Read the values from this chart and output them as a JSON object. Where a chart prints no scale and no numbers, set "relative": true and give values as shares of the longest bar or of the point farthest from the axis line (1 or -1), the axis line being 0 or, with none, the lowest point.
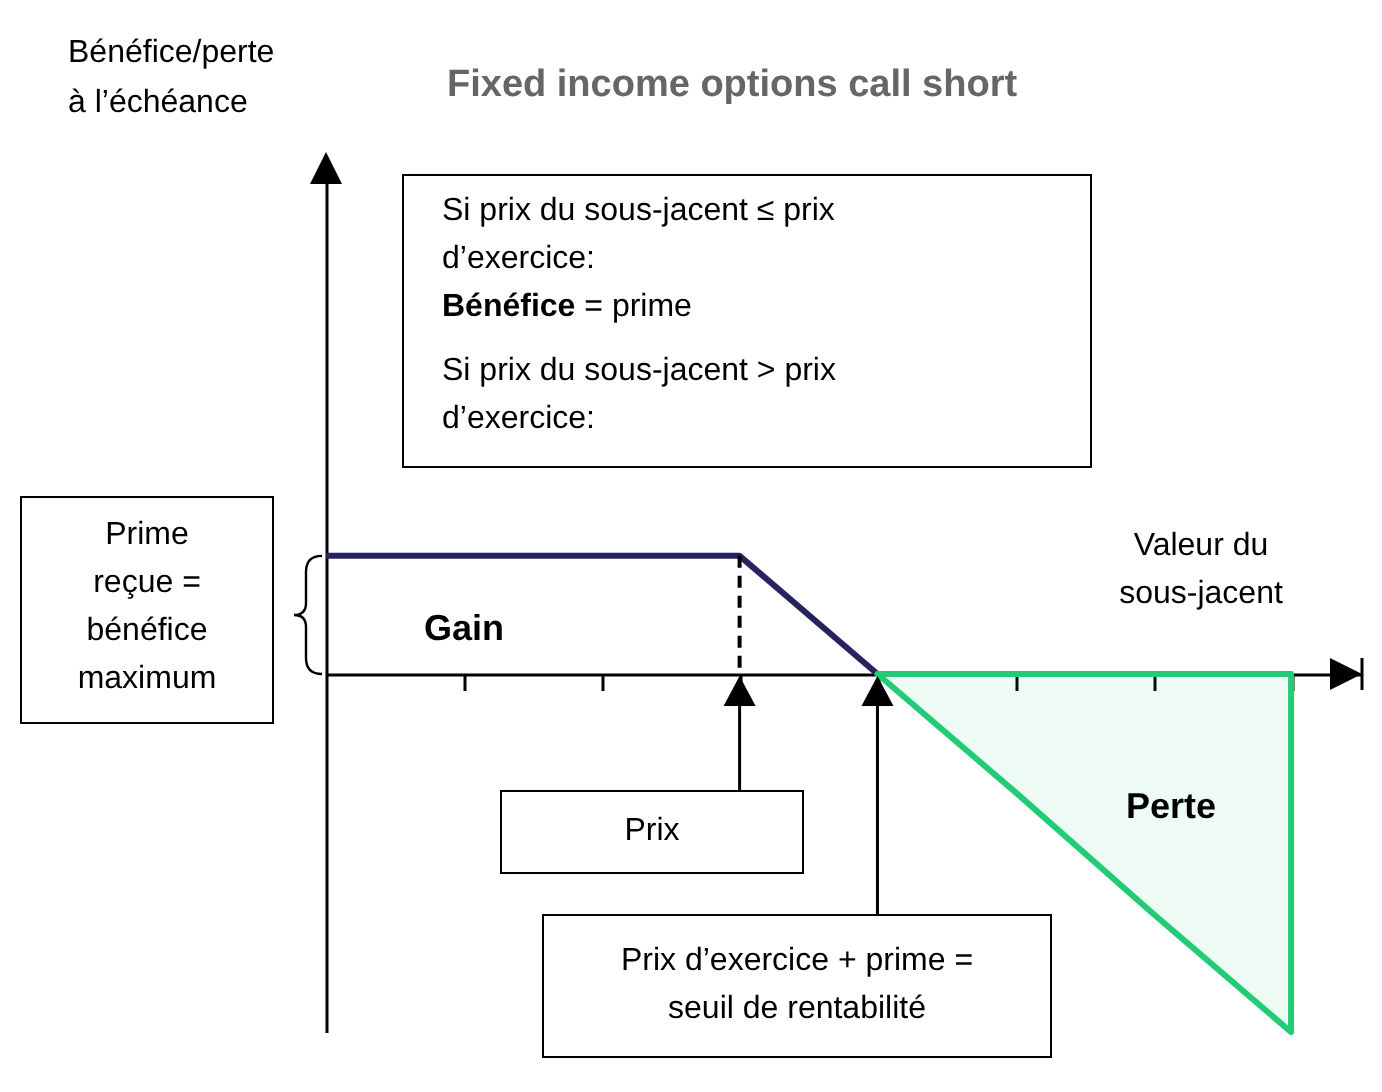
{
  "chart_data": {
    "type": "line",
    "title": "Fixed income options call short",
    "xlabel": "Valeur du sous-jacent",
    "relative": true,
    "categories": [
      null,
      null,
      null,
      null,
      null,
      null,
      null,
      null
    ],
    "series": [
      {
        "color": "#27235f",
        "values": [
          0.33,
          0.33,
          0.33,
          0.33,
          0,
          null,
          null,
          null
        ]
      },
      {
        "type": "area",
        "color": "#22cc77",
        "values": [
          null,
          null,
          null,
          null,
          0,
          -0.33,
          -0.67,
          -1
        ]
      }
    ],
    "annotations": [
      "Si prix du sous-jacent ≤ prix d’exercice:",
      "Bénéfice",
      "= prime",
      "Si prix du sous-jacent > prix d’exercice:",
      "Prime reçue = bénéfice maximum",
      "Gain",
      "Prix",
      "Prix d’exercice + prime = seuil de rentabilité",
      "Perte",
      "Bénéfice/perte à l’échéance"
    ]
  }
}
